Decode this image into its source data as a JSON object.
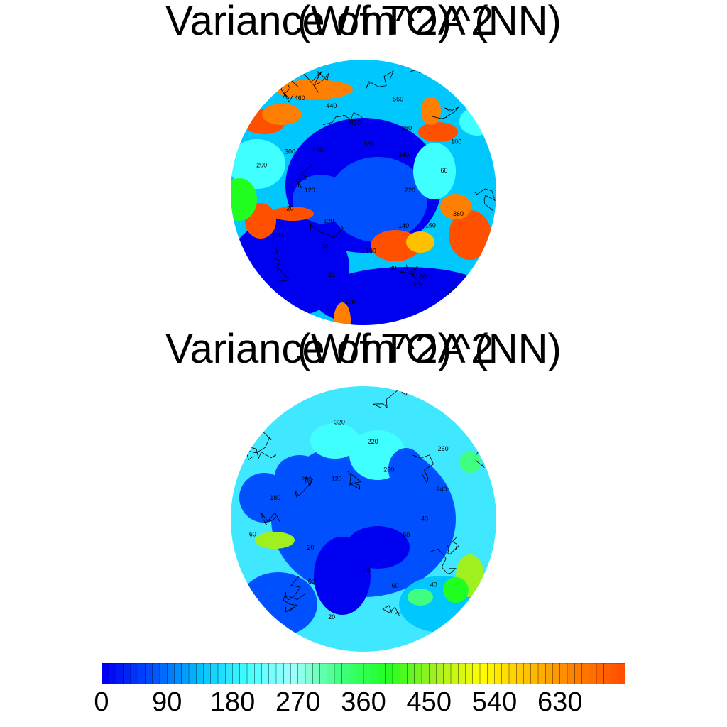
{
  "chart_data": [
    {
      "type": "heatmap",
      "title": "Variance of TOA (NN)",
      "title_overlay": "(W/m^2)^2",
      "projection": "north-polar-stereographic",
      "contour_labels": [
        "220",
        "360",
        "160",
        "140",
        "60",
        "80",
        "100",
        "180",
        "20",
        "40",
        "120",
        "100",
        "20",
        "120",
        "200",
        "300",
        "450",
        "460",
        "440",
        "420",
        "360",
        "560",
        "380",
        "340",
        "100",
        "60"
      ]
    },
    {
      "type": "heatmap",
      "title": "Variance of TOA (NN)",
      "title_overlay": "(W/m^2)^2",
      "projection": "north-polar-stereographic",
      "contour_labels": [
        "60",
        "40",
        "60",
        "40",
        "20",
        "60",
        "20",
        "60",
        "180",
        "200",
        "120",
        "320",
        "220",
        "280",
        "260",
        "240",
        "40"
      ]
    }
  ],
  "colorbar": {
    "range": [
      0,
      720
    ],
    "step": 10,
    "tick_labels": [
      "0",
      "90",
      "180",
      "270",
      "360",
      "450",
      "540",
      "630"
    ],
    "colors": [
      "#0000f0",
      "#0050ff",
      "#00c0ff",
      "#40ffff",
      "#a0ffff",
      "#40ff80",
      "#20ff20",
      "#a0f020",
      "#ffff00",
      "#ffc000",
      "#ff8000",
      "#ff5000"
    ]
  }
}
